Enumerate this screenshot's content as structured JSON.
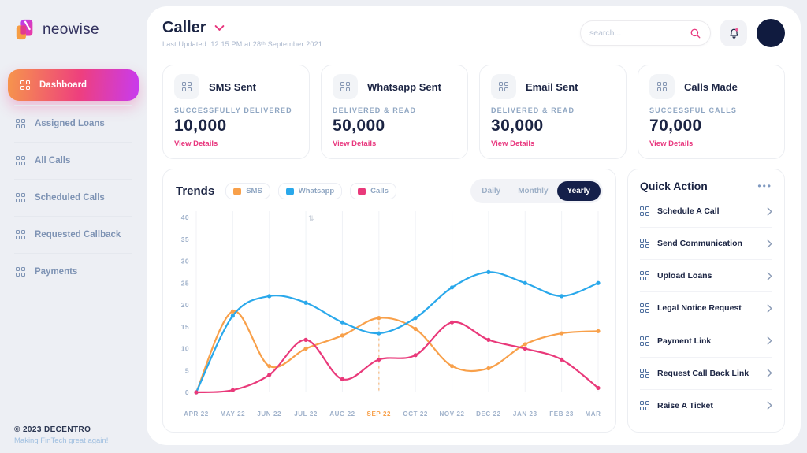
{
  "brand": {
    "name": "neowise"
  },
  "sidebar": {
    "items": [
      {
        "label": "Dashboard",
        "active": true
      },
      {
        "label": "Assigned Loans",
        "active": false
      },
      {
        "label": "All Calls",
        "active": false
      },
      {
        "label": "Scheduled Calls",
        "active": false
      },
      {
        "label": "Requested Callback",
        "active": false
      },
      {
        "label": "Payments",
        "active": false
      }
    ],
    "footer": {
      "copyright": "© 2023 DECENTRO",
      "tagline": "Making FinTech great again!"
    }
  },
  "header": {
    "title": "Caller",
    "last_updated": "Last Updated: 12:15 PM at 28ᵗʰ September 2021",
    "search_placeholder": "search..."
  },
  "stats": [
    {
      "title": "SMS Sent",
      "caption": "SUCCESSFULLY DELIVERED",
      "value": "10,000",
      "link": "View Details"
    },
    {
      "title": "Whatsapp Sent",
      "caption": "DELIVERED & READ",
      "value": "50,000",
      "link": "View Details"
    },
    {
      "title": "Email Sent",
      "caption": "DELIVERED & READ",
      "value": "30,000",
      "link": "View Details"
    },
    {
      "title": "Calls Made",
      "caption": "SUCCESSFUL CALLS",
      "value": "70,000",
      "link": "View Details"
    }
  ],
  "trends": {
    "title": "Trends",
    "legend": [
      {
        "label": "SMS",
        "color": "#F8A04A"
      },
      {
        "label": "Whatsapp",
        "color": "#29A8EB"
      },
      {
        "label": "Calls",
        "color": "#E9397A"
      }
    ],
    "tabs": [
      {
        "label": "Daily",
        "active": false
      },
      {
        "label": "Monthly",
        "active": false
      },
      {
        "label": "Yearly",
        "active": true
      }
    ]
  },
  "chart_data": {
    "type": "line",
    "title": "Trends",
    "x": [
      "APR 22",
      "MAY 22",
      "JUN 22",
      "JUL 22",
      "AUG 22",
      "SEP 22",
      "OCT 22",
      "NOV 22",
      "DEC 22",
      "JAN 23",
      "FEB 23",
      "MAR 23"
    ],
    "series": [
      {
        "name": "SMS",
        "color": "#F8A04A",
        "values": [
          0,
          18.5,
          6,
          10,
          13,
          17,
          14.5,
          6,
          5.5,
          11,
          13.5,
          14
        ]
      },
      {
        "name": "Whatsapp",
        "color": "#29A8EB",
        "values": [
          0,
          17.5,
          22,
          20.5,
          16,
          13.5,
          17,
          24,
          27.5,
          25,
          22,
          25
        ]
      },
      {
        "name": "Calls",
        "color": "#E9397A",
        "values": [
          0,
          0.5,
          4,
          12,
          3,
          7.5,
          8.5,
          16,
          12,
          10,
          7.5,
          1
        ]
      }
    ],
    "ylim": [
      0,
      40
    ],
    "ytick_step": 5,
    "highlight_x": "SEP 22",
    "grid": "vertical",
    "legend_position": "top"
  },
  "quick_action": {
    "title": "Quick Action",
    "items": [
      {
        "label": "Schedule A Call"
      },
      {
        "label": "Send Communication"
      },
      {
        "label": "Upload Loans"
      },
      {
        "label": "Legal Notice Request"
      },
      {
        "label": "Payment Link"
      },
      {
        "label": "Request Call Back Link"
      },
      {
        "label": "Raise A Ticket"
      }
    ]
  },
  "colors": {
    "accent_pink": "#E8377E",
    "accent_orange": "#F8A04A",
    "accent_blue": "#29A8EB",
    "navy": "#1B2443",
    "gradient_start": "#F6954C",
    "gradient_mid": "#EE3F7E",
    "gradient_end": "#C83BEF"
  }
}
